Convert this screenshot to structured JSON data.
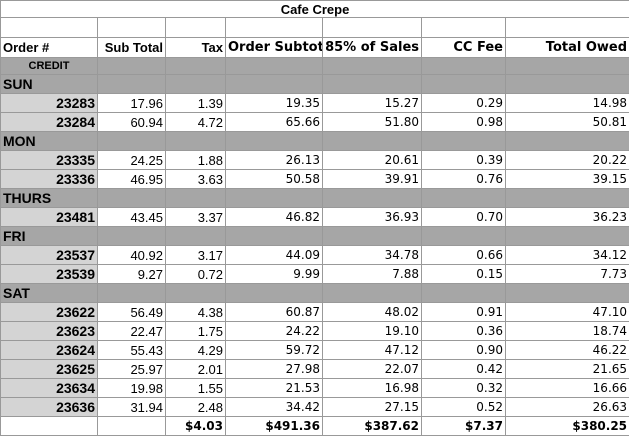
{
  "title": "Cafe Crepe",
  "headers": [
    "Order #",
    "Sub Total",
    "Tax",
    "Order Subtotal",
    "85% of Sales",
    "CC Fee",
    "Total Owed"
  ],
  "credit_label": "CREDIT",
  "groups": [
    {
      "day": "SUN",
      "rows": [
        [
          "23283",
          "17.96",
          "1.39",
          "19.35",
          "15.27",
          "0.29",
          "14.98"
        ],
        [
          "23284",
          "60.94",
          "4.72",
          "65.66",
          "51.80",
          "0.98",
          "50.81"
        ]
      ]
    },
    {
      "day": "MON",
      "rows": [
        [
          "23335",
          "24.25",
          "1.88",
          "26.13",
          "20.61",
          "0.39",
          "20.22"
        ],
        [
          "23336",
          "46.95",
          "3.63",
          "50.58",
          "39.91",
          "0.76",
          "39.15"
        ]
      ]
    },
    {
      "day": "THURS",
      "rows": [
        [
          "23481",
          "43.45",
          "3.37",
          "46.82",
          "36.93",
          "0.70",
          "36.23"
        ]
      ]
    },
    {
      "day": "FRI",
      "rows": [
        [
          "23537",
          "40.92",
          "3.17",
          "44.09",
          "34.78",
          "0.66",
          "34.12"
        ],
        [
          "23539",
          "9.27",
          "0.72",
          "9.99",
          "7.88",
          "0.15",
          "7.73"
        ]
      ]
    },
    {
      "day": "SAT",
      "rows": [
        [
          "23622",
          "56.49",
          "4.38",
          "60.87",
          "48.02",
          "0.91",
          "47.10"
        ],
        [
          "23623",
          "22.47",
          "1.75",
          "24.22",
          "19.10",
          "0.36",
          "18.74"
        ],
        [
          "23624",
          "55.43",
          "4.29",
          "59.72",
          "47.12",
          "0.90",
          "46.22"
        ],
        [
          "23625",
          "25.97",
          "2.01",
          "27.98",
          "22.07",
          "0.42",
          "21.65"
        ],
        [
          "23634",
          "19.98",
          "1.55",
          "21.53",
          "16.98",
          "0.32",
          "16.66"
        ],
        [
          "23636",
          "31.94",
          "2.48",
          "34.42",
          "27.15",
          "0.52",
          "26.63"
        ]
      ]
    }
  ],
  "totals": [
    "$4.03",
    "$491.36",
    "$387.62",
    "$7.37",
    "$380.25"
  ]
}
